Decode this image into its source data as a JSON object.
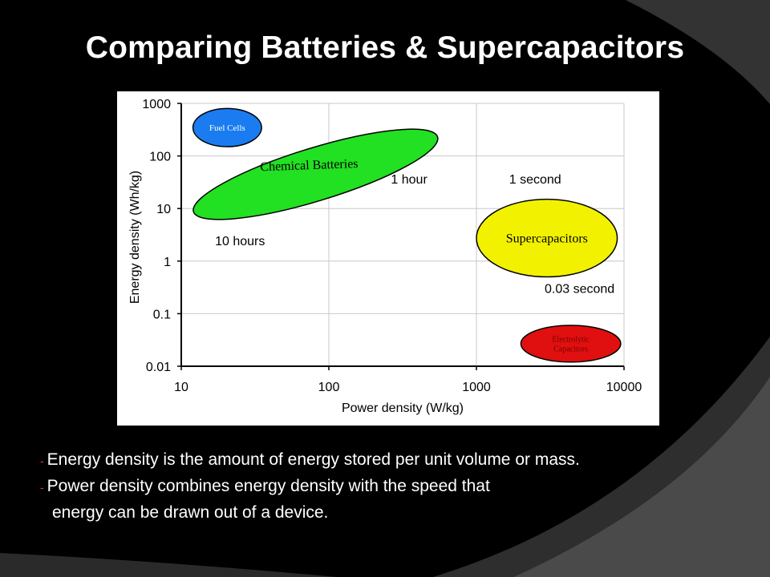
{
  "slide": {
    "title": "Comparing Batteries & Supercapacitors",
    "bullets": [
      {
        "marker": "-",
        "text": "Energy density is the amount of energy stored per unit volume or mass."
      },
      {
        "marker": "-",
        "text": "Power density combines energy density with the speed that"
      },
      {
        "marker": "",
        "text": "energy can be drawn out of a device."
      }
    ]
  },
  "colors": {
    "fuel_cells": "#1a7cf0",
    "chemical_batteries": "#22e022",
    "supercapacitors": "#f2f200",
    "electrolytic_capacitors": "#e01010",
    "electrolytic_text": "#7a0000"
  },
  "chart_data": {
    "type": "scatter",
    "title": "",
    "xlabel": "Power density (W/kg)",
    "ylabel": "Energy density (Wh/kg)",
    "xscale": "log",
    "yscale": "log",
    "xlim": [
      10,
      10000
    ],
    "ylim": [
      0.01,
      1000
    ],
    "xticks": [
      "10",
      "100",
      "1000",
      "10000"
    ],
    "yticks": [
      "1000",
      "100",
      "10",
      "1",
      "0.1",
      "0.01"
    ],
    "grid": "major",
    "regions": [
      {
        "name": "Fuel Cells",
        "x_range": [
          12,
          35
        ],
        "y_range": [
          150,
          800
        ]
      },
      {
        "name": "Chemical Batteries",
        "x_range": [
          11,
          600
        ],
        "y_range": [
          8,
          250
        ]
      },
      {
        "name": "Supercapacitors",
        "x_range": [
          1000,
          9000
        ],
        "y_range": [
          0.5,
          15
        ]
      },
      {
        "name": "Electrolytic Capacitors",
        "x_range": [
          2000,
          9500
        ],
        "y_range": [
          0.012,
          0.06
        ]
      }
    ],
    "annotations": [
      {
        "text": "1 hour",
        "x": 350,
        "y": 30
      },
      {
        "text": "1 second",
        "x": 2500,
        "y": 30
      },
      {
        "text": "10 hours",
        "x": 25,
        "y": 2
      },
      {
        "text": "0.03 second",
        "x": 5000,
        "y": 0.25
      }
    ]
  }
}
